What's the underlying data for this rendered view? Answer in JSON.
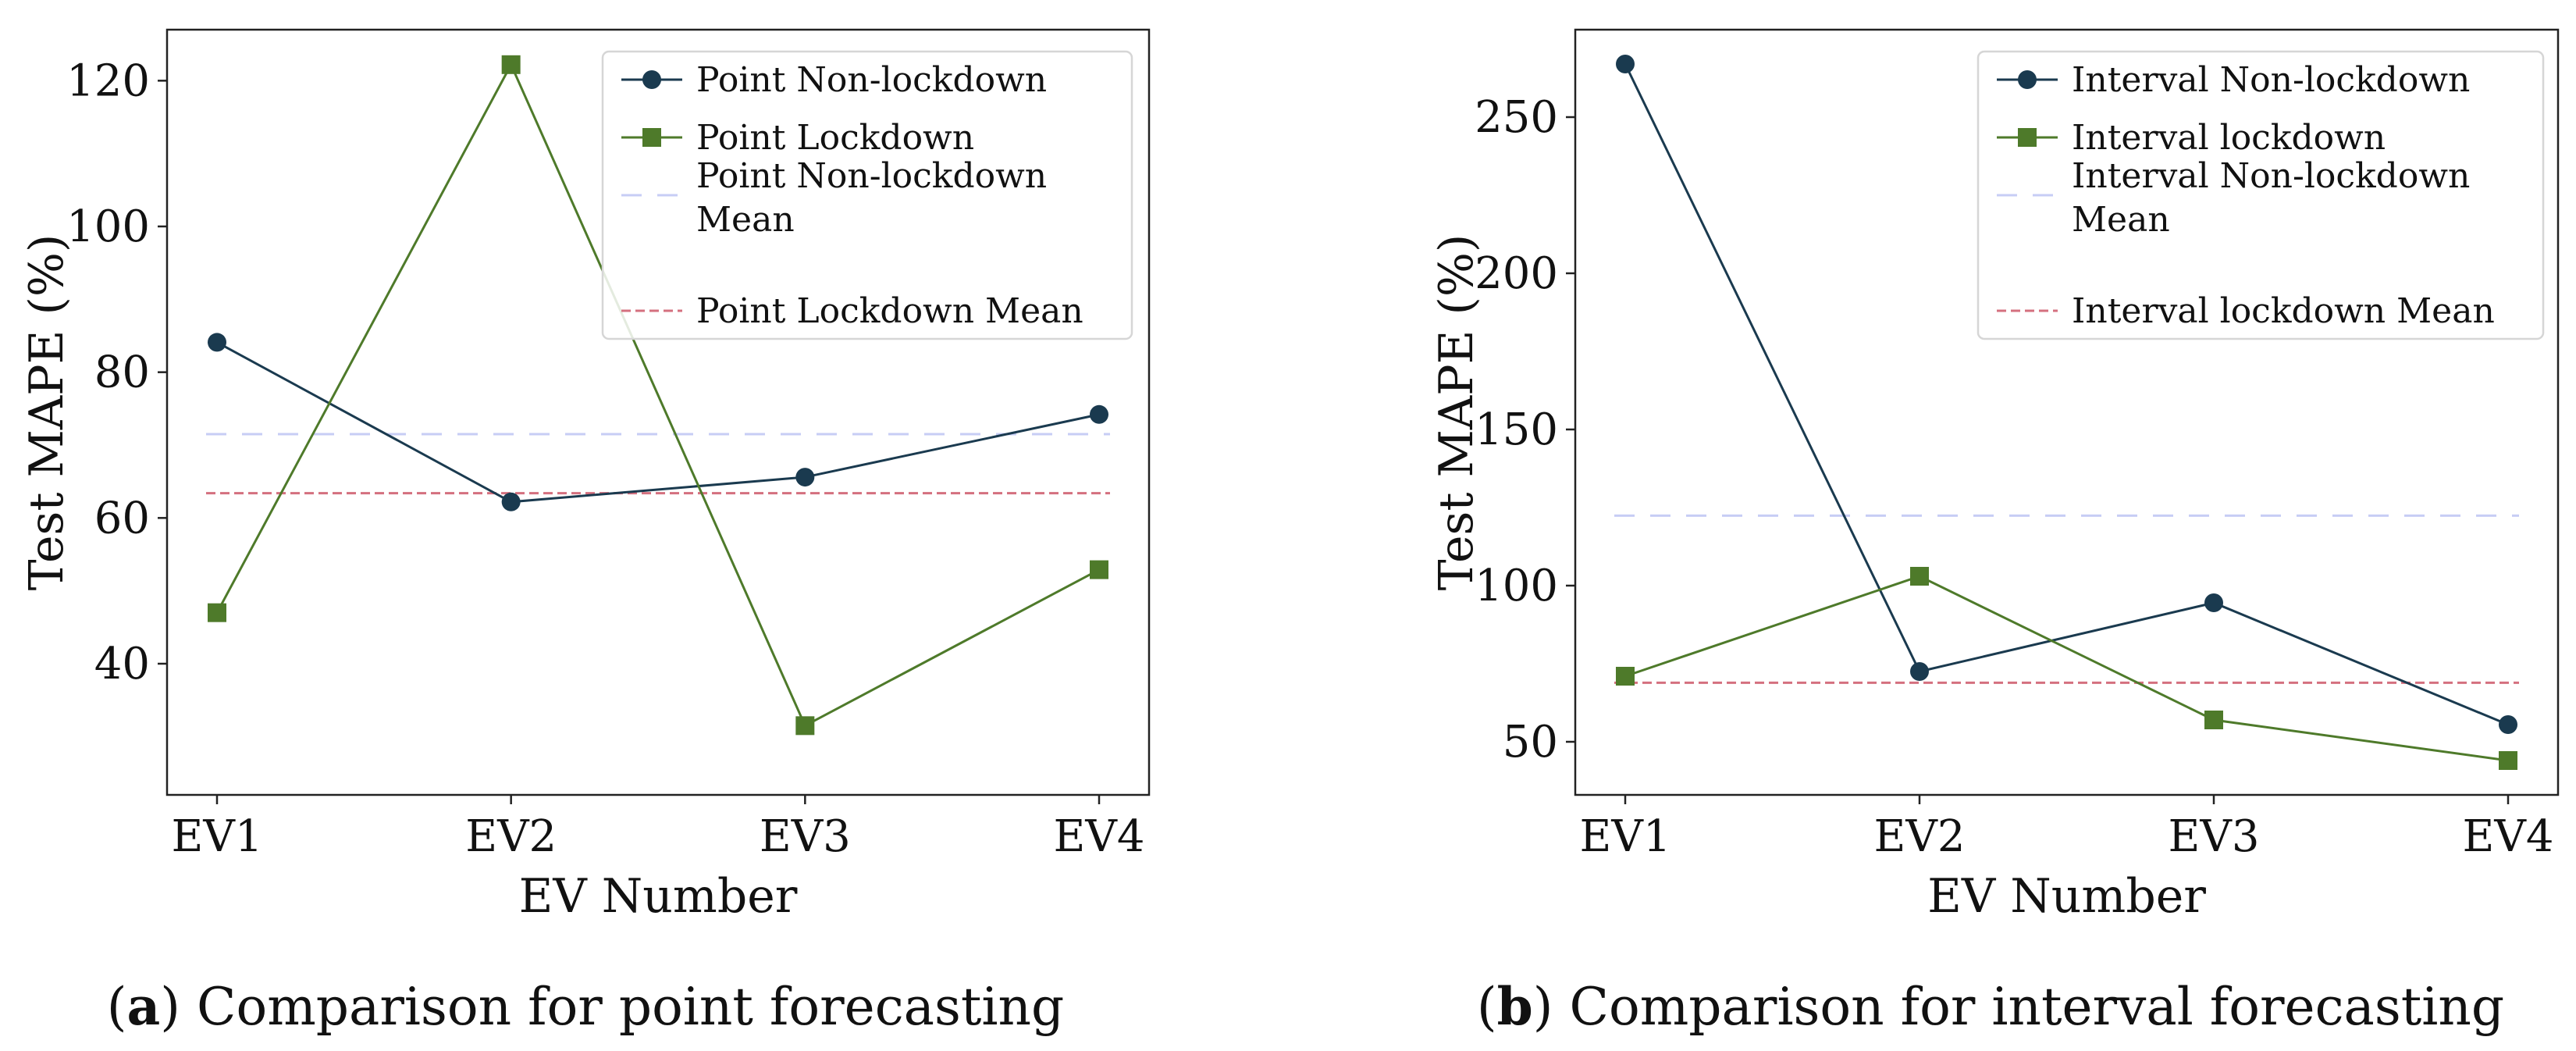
{
  "chart_data": [
    {
      "type": "line",
      "panel_letter": "a",
      "caption": "Comparison for point forecasting",
      "xlabel": "EV Number",
      "ylabel": "Test MAPE (%)",
      "categories": [
        "EV1",
        "EV2",
        "EV3",
        "EV4"
      ],
      "ylim": [
        22,
        127
      ],
      "yticks": [
        40,
        60,
        80,
        100,
        120
      ],
      "legend_position": "top-right",
      "series": [
        {
          "name": "Point Non-lockdown",
          "values": [
            84.1,
            62.2,
            65.6,
            74.2
          ],
          "color": "#1a3a4f",
          "marker": "circle"
        },
        {
          "name": "Point Lockdown",
          "values": [
            47.0,
            122.2,
            31.5,
            52.9
          ],
          "color": "#4e7a2a",
          "marker": "square"
        }
      ],
      "means": [
        {
          "name_line1": "Point Non-lockdown",
          "name_line2": "Mean",
          "value": 71.5,
          "color": "#c7cdf5"
        },
        {
          "name_line1": "Point Lockdown Mean",
          "name_line2": "",
          "value": 63.4,
          "color": "#d4707f"
        }
      ]
    },
    {
      "type": "line",
      "panel_letter": "b",
      "caption": "Comparison for interval forecasting",
      "xlabel": "EV Number",
      "ylabel": "Test MAPE (%)",
      "categories": [
        "EV1",
        "EV2",
        "EV3",
        "EV4"
      ],
      "ylim": [
        33,
        278
      ],
      "yticks": [
        50,
        100,
        150,
        200,
        250
      ],
      "legend_position": "top-right",
      "series": [
        {
          "name": "Interval Non-lockdown",
          "values": [
            267,
            72.5,
            94.5,
            55.5
          ],
          "color": "#1a3a4f",
          "marker": "circle"
        },
        {
          "name": "Interval lockdown",
          "values": [
            71,
            103,
            57,
            44
          ],
          "color": "#4e7a2a",
          "marker": "square"
        }
      ],
      "means": [
        {
          "name_line1": "Interval Non-lockdown",
          "name_line2": "Mean",
          "value": 122.4,
          "color": "#c7cdf5"
        },
        {
          "name_line1": "Interval lockdown Mean",
          "name_line2": "",
          "value": 68.9,
          "color": "#d4707f"
        }
      ]
    }
  ]
}
